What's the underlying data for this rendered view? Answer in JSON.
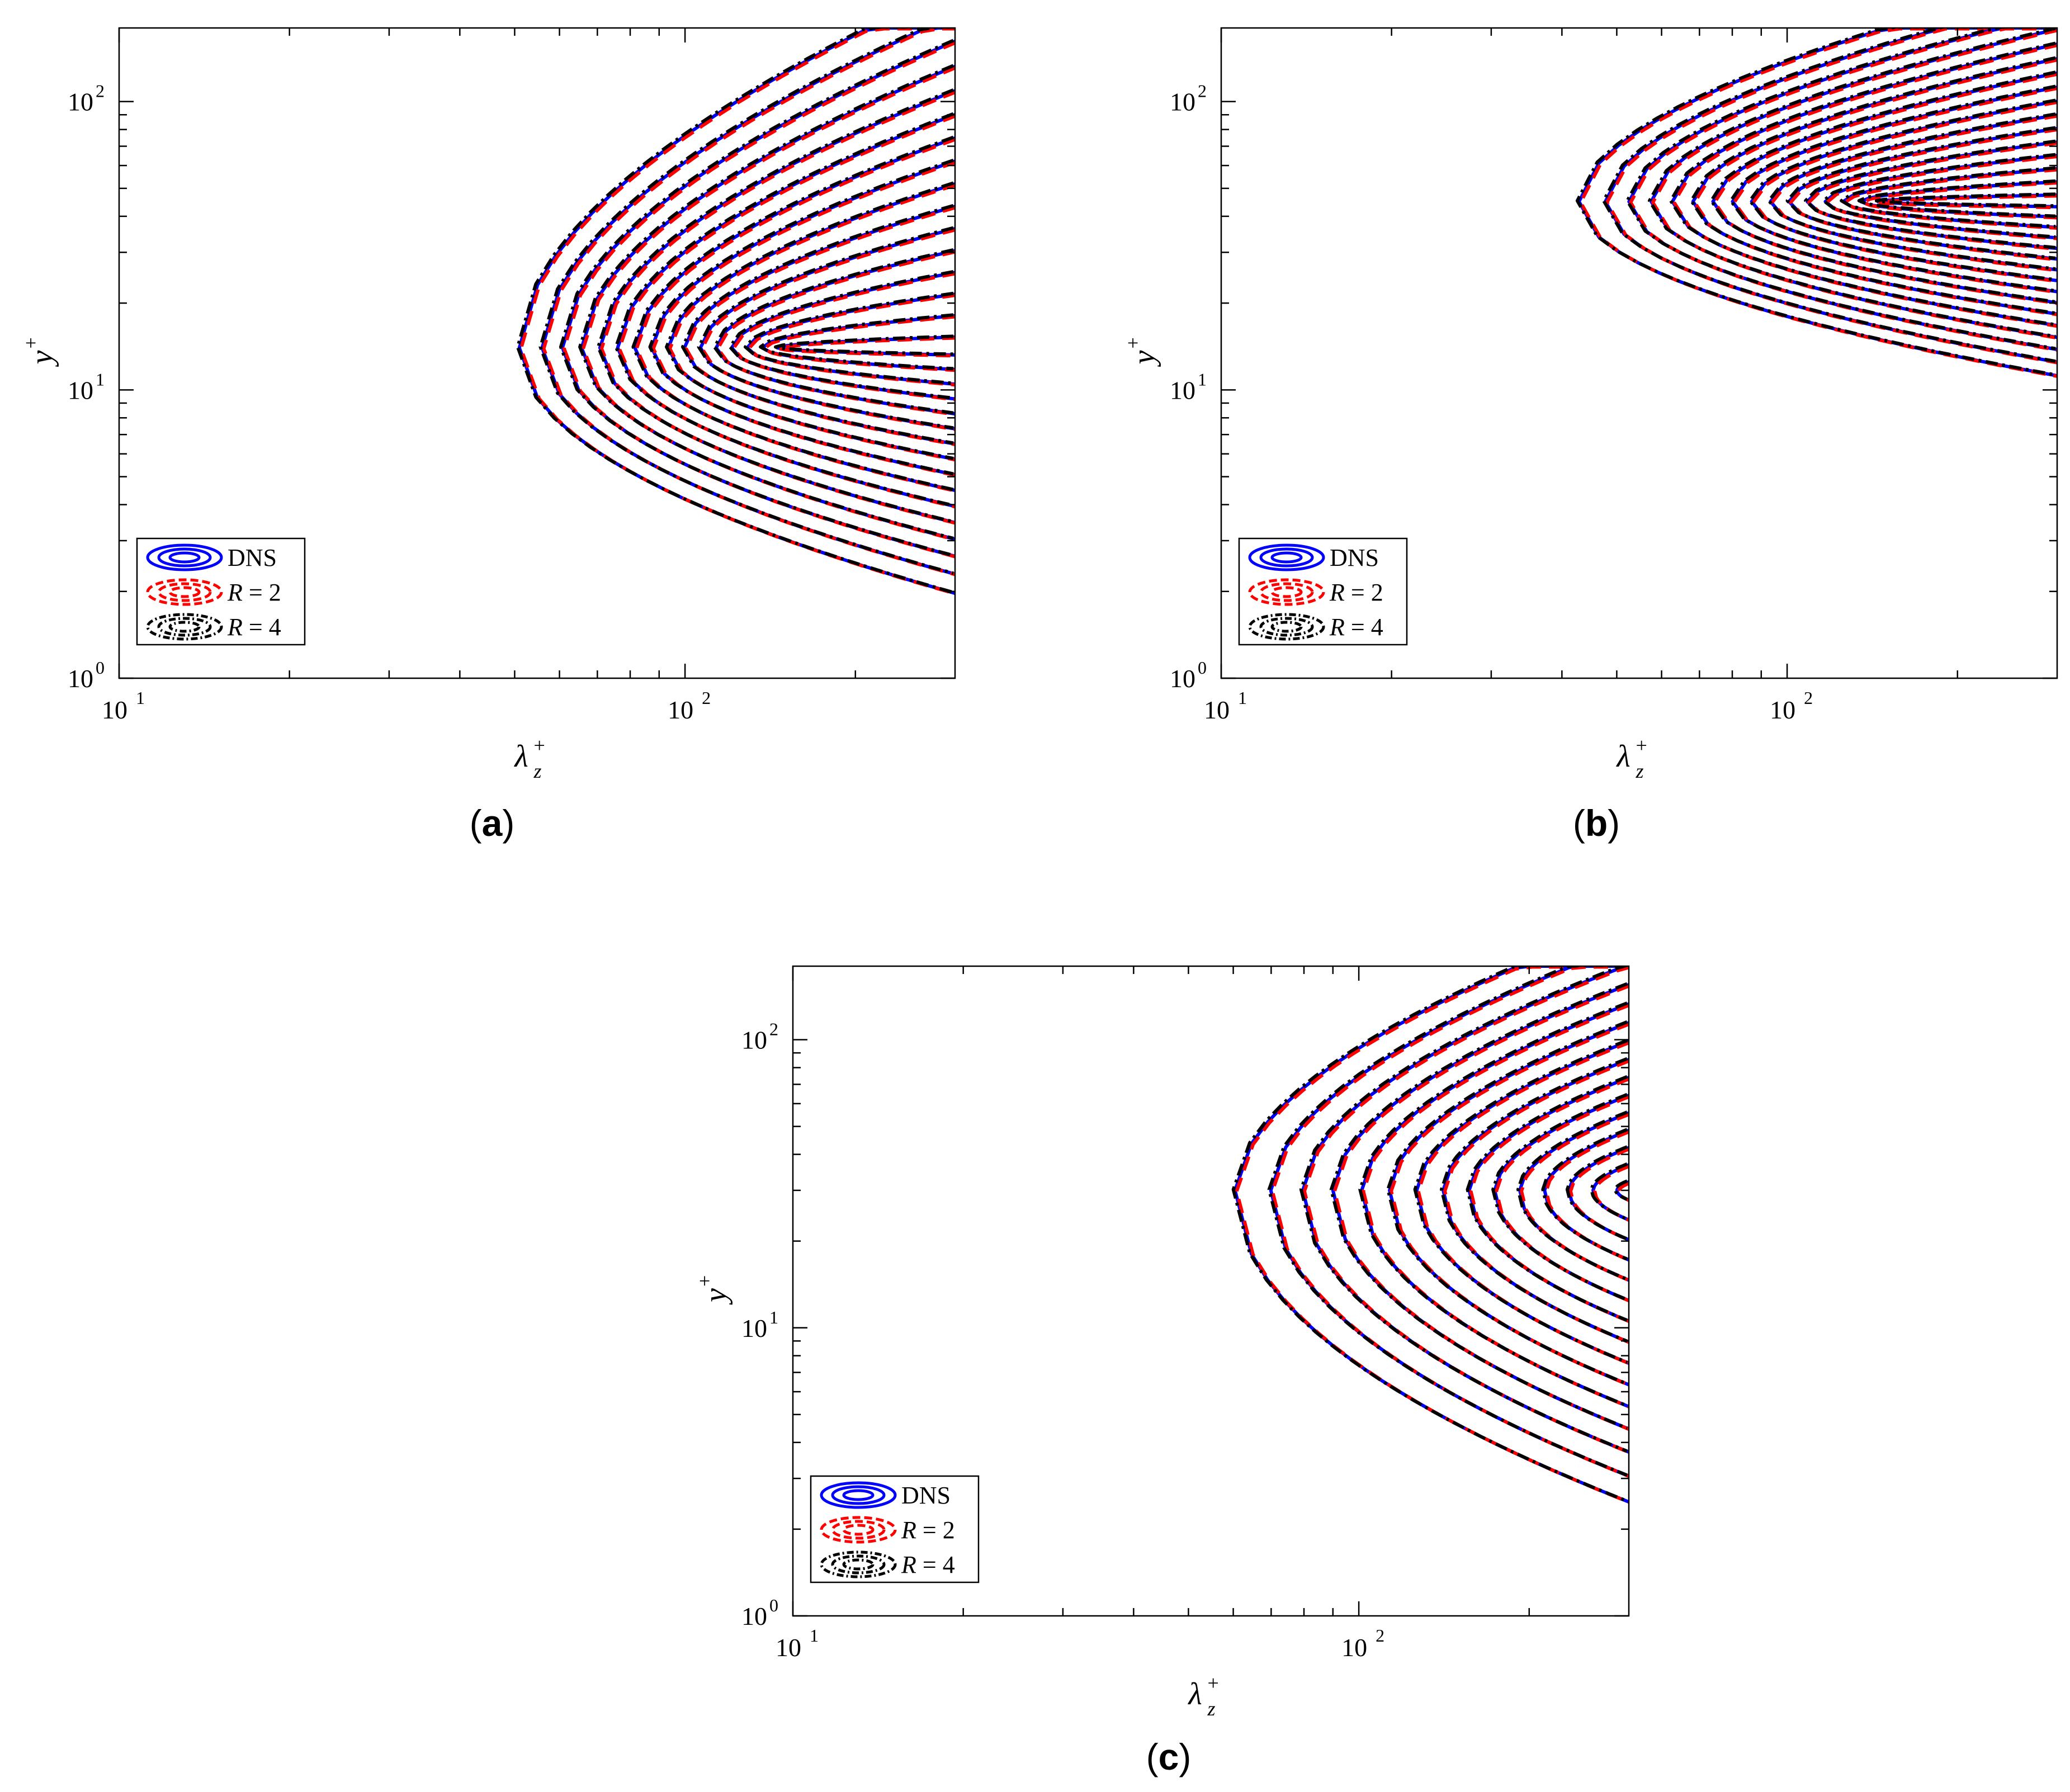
{
  "panels": [
    {
      "caption_letter": "a",
      "caption_open": "(",
      "caption_close": ")"
    },
    {
      "caption_letter": "b",
      "caption_open": "(",
      "caption_close": ")"
    },
    {
      "caption_letter": "c",
      "caption_open": "(",
      "caption_close": ")"
    }
  ],
  "colors": {
    "DNS": "#0000ff",
    "R2": "#ff0000",
    "R4": "#000000"
  },
  "chart_data": [
    {
      "type": "contour",
      "panel": "a",
      "xlabel": {
        "base": "λ",
        "sub": "z",
        "sup": "+"
      },
      "ylabel": {
        "base": "y",
        "sup": "+"
      },
      "xscale": "log",
      "yscale": "log",
      "xlim": [
        10,
        300
      ],
      "ylim": [
        1,
        180
      ],
      "xticks": [
        {
          "base": "10",
          "exp": "1",
          "value": 10
        },
        {
          "base": "10",
          "exp": "2",
          "value": 100
        }
      ],
      "yticks": [
        {
          "base": "10",
          "exp": "0",
          "value": 1
        },
        {
          "base": "10",
          "exp": "1",
          "value": 10
        },
        {
          "base": "10",
          "exp": "2",
          "value": 100
        }
      ],
      "grid": false,
      "legend": {
        "placement": "bottom-left",
        "entries": [
          {
            "key": "DNS",
            "text": "DNS",
            "style": "solid"
          },
          {
            "key": "R2",
            "text": "R = 2",
            "style": "dashed"
          },
          {
            "key": "R4",
            "text": "R = 4",
            "style": "dash-dot"
          }
        ]
      },
      "contours": {
        "shape": "nested",
        "levels": 16,
        "peak": [
          150,
          14
        ],
        "outer_left_x": 48,
        "outer_bottom_y": 1.8
      }
    },
    {
      "type": "contour",
      "panel": "b",
      "xlabel": {
        "base": "λ",
        "sub": "z",
        "sup": "+"
      },
      "ylabel": {
        "base": "y",
        "sup": "+"
      },
      "xscale": "log",
      "yscale": "log",
      "xlim": [
        10,
        300
      ],
      "ylim": [
        1,
        180
      ],
      "xticks": [
        {
          "base": "10",
          "exp": "1",
          "value": 10
        },
        {
          "base": "10",
          "exp": "2",
          "value": 100
        }
      ],
      "yticks": [
        {
          "base": "10",
          "exp": "0",
          "value": 1
        },
        {
          "base": "10",
          "exp": "1",
          "value": 10
        },
        {
          "base": "10",
          "exp": "2",
          "value": 100
        }
      ],
      "grid": false,
      "legend": {
        "placement": "bottom-left",
        "entries": [
          {
            "key": "DNS",
            "text": "DNS",
            "style": "solid"
          },
          {
            "key": "R2",
            "text": "R = 2",
            "style": "dashed"
          },
          {
            "key": "R4",
            "text": "R = 4",
            "style": "dash-dot"
          }
        ]
      },
      "contours": {
        "shape": "nested",
        "levels": 16,
        "peak": [
          150,
          45
        ],
        "outer_left_x": 40,
        "outer_bottom_y": 10.5
      }
    },
    {
      "type": "contour",
      "panel": "c",
      "xlabel": {
        "base": "λ",
        "sub": "z",
        "sup": "+"
      },
      "ylabel": {
        "base": "y",
        "sup": "+"
      },
      "xscale": "log",
      "yscale": "log",
      "xlim": [
        10,
        300
      ],
      "ylim": [
        1,
        180
      ],
      "xticks": [
        {
          "base": "10",
          "exp": "1",
          "value": 10
        },
        {
          "base": "10",
          "exp": "2",
          "value": 100
        }
      ],
      "yticks": [
        {
          "base": "10",
          "exp": "0",
          "value": 1
        },
        {
          "base": "10",
          "exp": "1",
          "value": 10
        },
        {
          "base": "10",
          "exp": "2",
          "value": 100
        }
      ],
      "grid": false,
      "legend": {
        "placement": "bottom-left",
        "entries": [
          {
            "key": "DNS",
            "text": "DNS",
            "style": "solid"
          },
          {
            "key": "R2",
            "text": "R = 2",
            "style": "dashed"
          },
          {
            "key": "R4",
            "text": "R = 4",
            "style": "dash-dot"
          }
        ]
      },
      "contours": {
        "shape": "nested",
        "levels": 15,
        "peak": [
          300,
          30
        ],
        "outer_left_x": 55,
        "outer_bottom_y": 2.2
      }
    }
  ]
}
